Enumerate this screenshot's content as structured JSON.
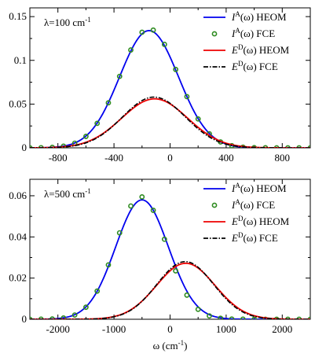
{
  "chart_data": [
    {
      "type": "line",
      "annotation": "λ=100 cm",
      "annotation_sup": "-1",
      "xlim": [
        -1000,
        1000
      ],
      "ylim": [
        0,
        0.16
      ],
      "xticks": [
        -800,
        -400,
        0,
        400,
        800
      ],
      "xtick_labels": [
        "-800",
        "-400",
        "0",
        "400",
        "800"
      ],
      "yticks": [
        0,
        0.05,
        0.1,
        0.15
      ],
      "ytick_labels": [
        "0",
        "0.05",
        "0.1",
        "0.15"
      ],
      "xlabel": "",
      "legend_position": "top-right",
      "series": [
        {
          "legend_main": "I",
          "legend_sup": "A",
          "legend_rest": "(ω) HEOM",
          "style": "solid",
          "color": "#0000ee",
          "gaussian": {
            "amp": 0.134,
            "center": -150,
            "sigma": 210
          }
        },
        {
          "legend_main": "I",
          "legend_sup": "A",
          "legend_rest": "(ω) FCE",
          "style": "markers",
          "color": "#2e8b20",
          "gaussian": {
            "amp": 0.136,
            "center": -150,
            "sigma": 208
          }
        },
        {
          "legend_main": "E",
          "legend_sup": "D",
          "legend_rest": "(ω) HEOM",
          "style": "solid",
          "color": "#ee0000",
          "gaussian": {
            "amp": 0.056,
            "center": -110,
            "sigma": 235
          }
        },
        {
          "legend_main": "E",
          "legend_sup": "D",
          "legend_rest": "(ω) FCE",
          "style": "dashdot",
          "color": "#000000",
          "gaussian": {
            "amp": 0.058,
            "center": -115,
            "sigma": 225
          }
        }
      ]
    },
    {
      "type": "line",
      "annotation": "λ=500 cm",
      "annotation_sup": "-1",
      "xlim": [
        -2500,
        2500
      ],
      "ylim": [
        0,
        0.068
      ],
      "xticks": [
        -2000,
        -1000,
        0,
        1000,
        2000
      ],
      "xtick_labels": [
        "-2000",
        "-1000",
        "0",
        "1000",
        "2000"
      ],
      "yticks": [
        0,
        0.02,
        0.04,
        0.06
      ],
      "ytick_labels": [
        "0",
        "0.02",
        "0.04",
        "0.06"
      ],
      "xlabel": "ω (cm",
      "xlabel_sup": "-1",
      "xlabel_end": ")",
      "legend_position": "top-right",
      "series": [
        {
          "legend_main": "I",
          "legend_sup": "A",
          "legend_rest": "(ω) HEOM",
          "style": "solid",
          "color": "#0000ee",
          "gaussian": {
            "amp": 0.058,
            "center": -500,
            "sigma": 470
          }
        },
        {
          "legend_main": "I",
          "legend_sup": "A",
          "legend_rest": "(ω) FCE",
          "style": "markers",
          "color": "#2e8b20",
          "gaussian": {
            "amp": 0.0595,
            "center": -520,
            "sigma": 455
          }
        },
        {
          "legend_main": "E",
          "legend_sup": "D",
          "legend_rest": "(ω) HEOM",
          "style": "solid",
          "color": "#ee0000",
          "gaussian": {
            "amp": 0.0272,
            "center": 280,
            "sigma": 520
          }
        },
        {
          "legend_main": "E",
          "legend_sup": "D",
          "legend_rest": "(ω) FCE",
          "style": "dashdot",
          "color": "#000000",
          "gaussian": {
            "amp": 0.028,
            "center": 270,
            "sigma": 505
          }
        }
      ]
    }
  ]
}
